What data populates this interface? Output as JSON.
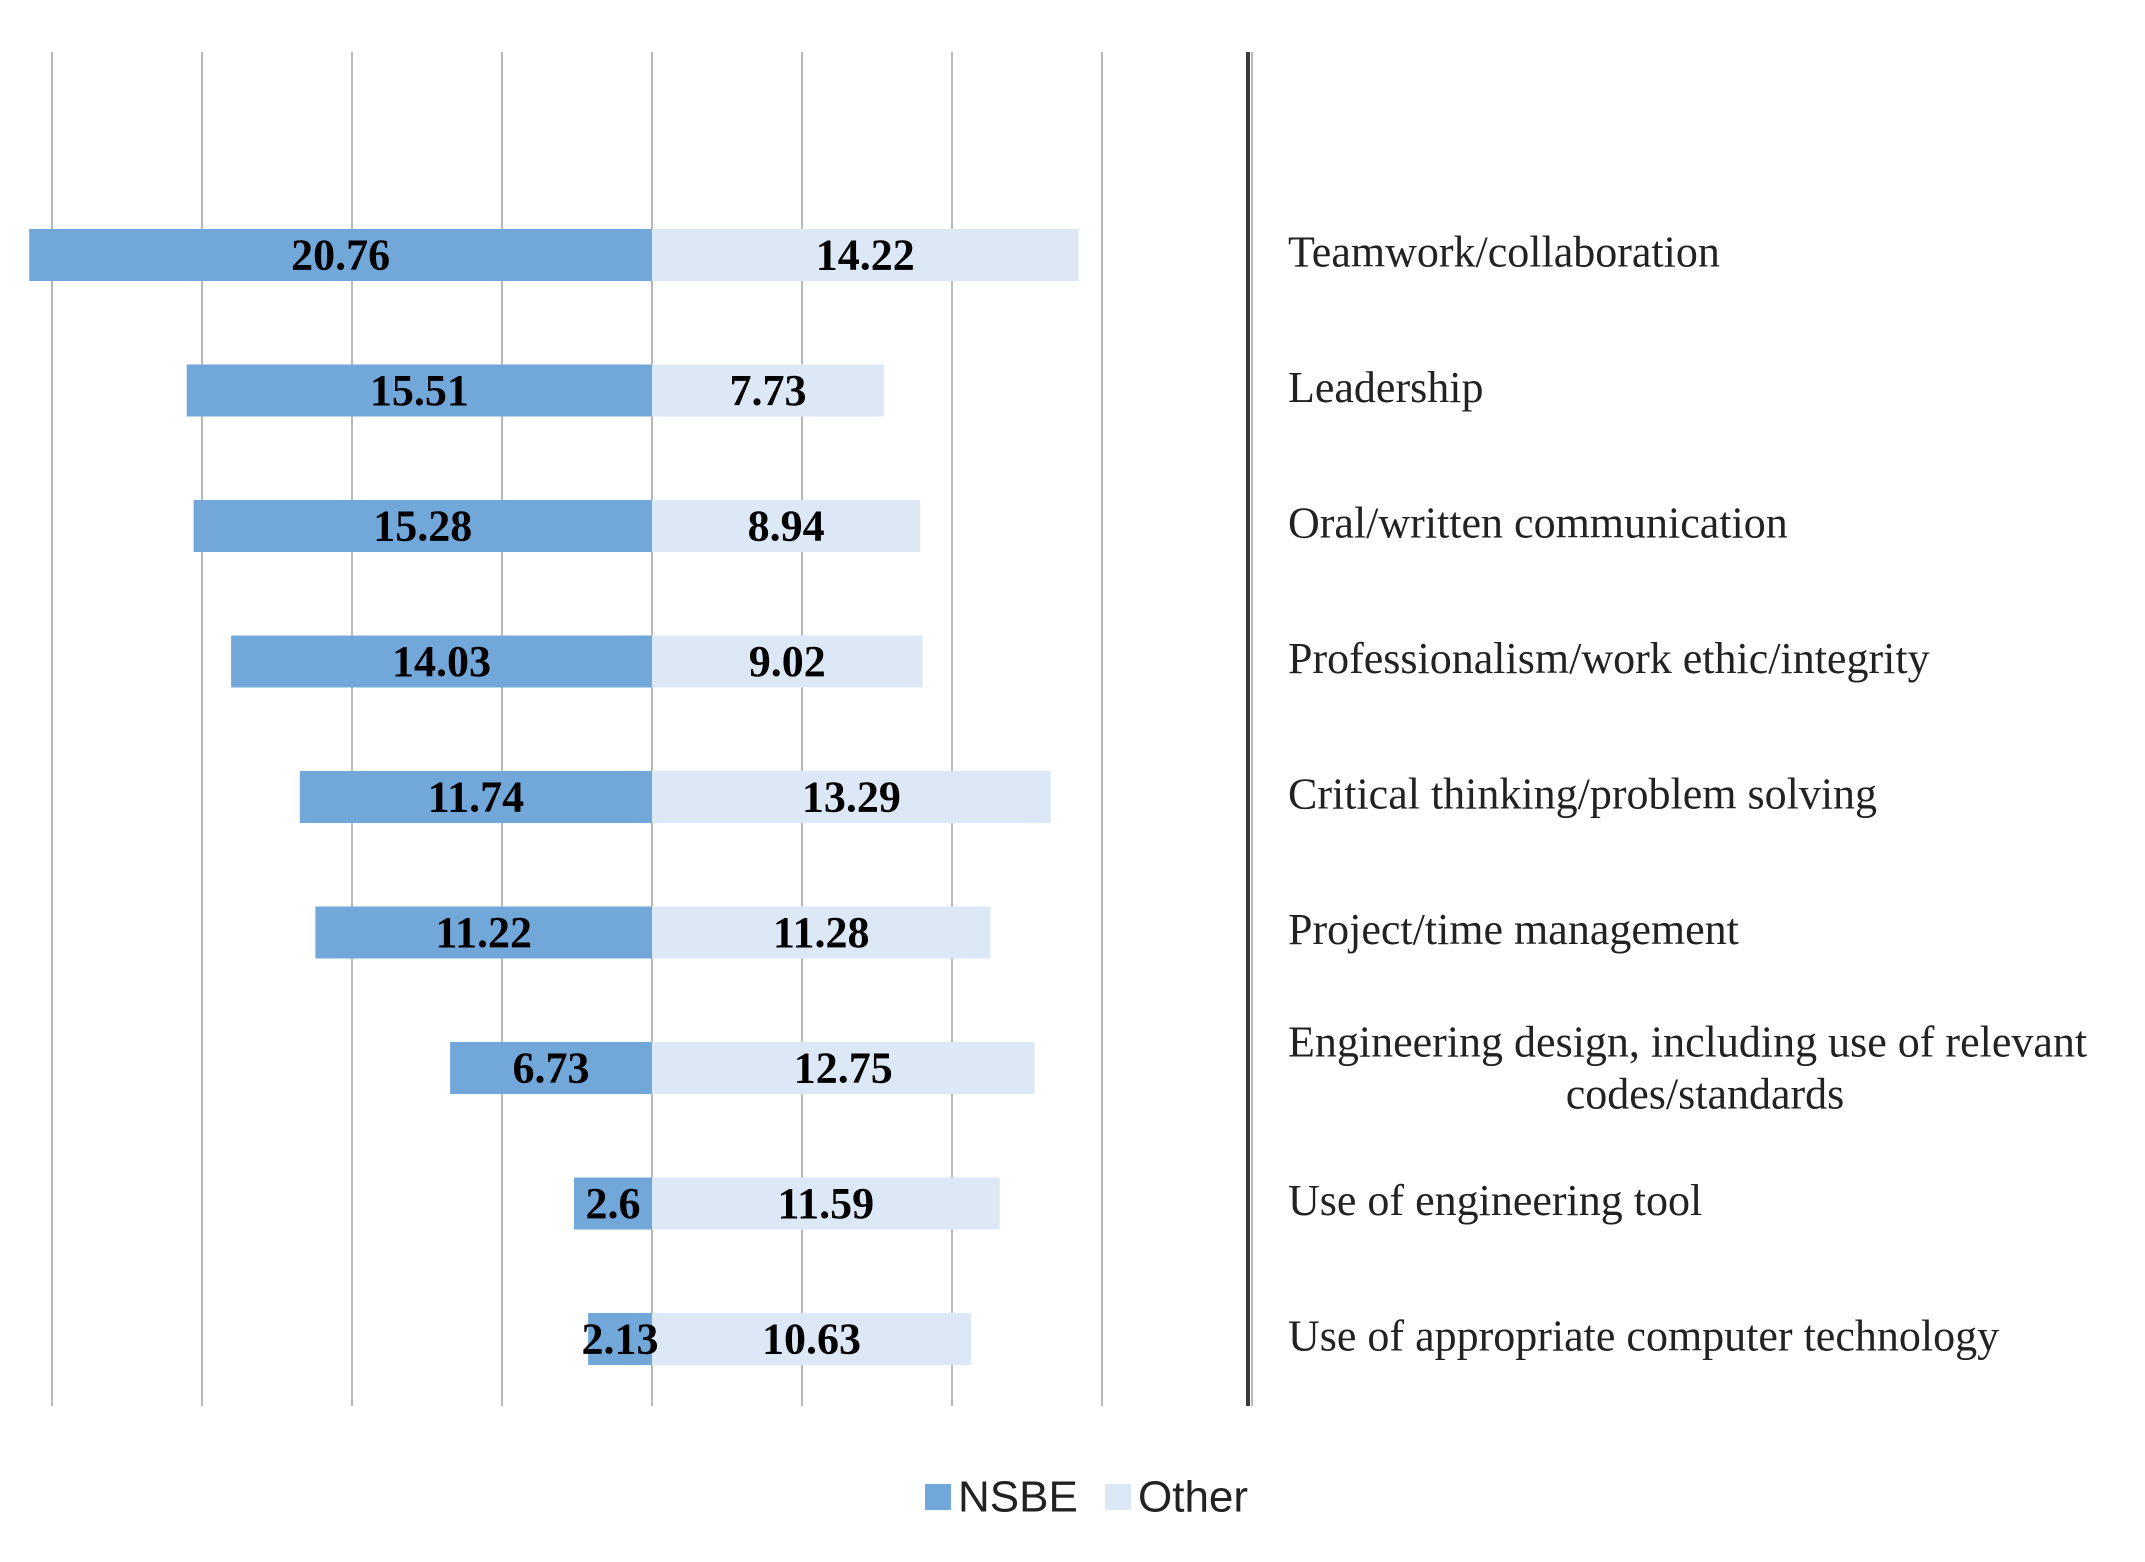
{
  "chart_data": {
    "type": "bar",
    "orientation": "horizontal-diverging",
    "categories": [
      "Teamwork/collaboration",
      "Leadership",
      "Oral/written communication",
      "Professionalism/work ethic/integrity",
      "Critical thinking/problem solving",
      "Project/time management",
      "Engineering design, including use of relevant codes/standards",
      "Use of engineering tool",
      "Use of appropriate computer technology"
    ],
    "series": [
      {
        "name": "NSBE",
        "color": "#72a7da",
        "direction": "left",
        "values": [
          20.76,
          15.51,
          15.28,
          14.03,
          11.74,
          11.22,
          6.73,
          2.6,
          2.13
        ],
        "labels": [
          "20.76",
          "15.51",
          "15.28",
          "14.03",
          "11.74",
          "11.22",
          "6.73",
          "2.6",
          "2.13"
        ]
      },
      {
        "name": "Other",
        "color": "#dce8f6",
        "direction": "right",
        "values": [
          14.22,
          7.73,
          8.94,
          9.02,
          13.29,
          11.28,
          12.75,
          11.59,
          10.63
        ],
        "labels": [
          "14.22",
          "7.73",
          "8.94",
          "9.02",
          "13.29",
          "11.28",
          "12.75",
          "11.59",
          "10.63"
        ]
      }
    ],
    "xlim": [
      -20,
      20
    ],
    "grid": true,
    "gridline_interval": 5,
    "legend_position": "bottom",
    "title": "",
    "xlabel": "",
    "ylabel": ""
  }
}
